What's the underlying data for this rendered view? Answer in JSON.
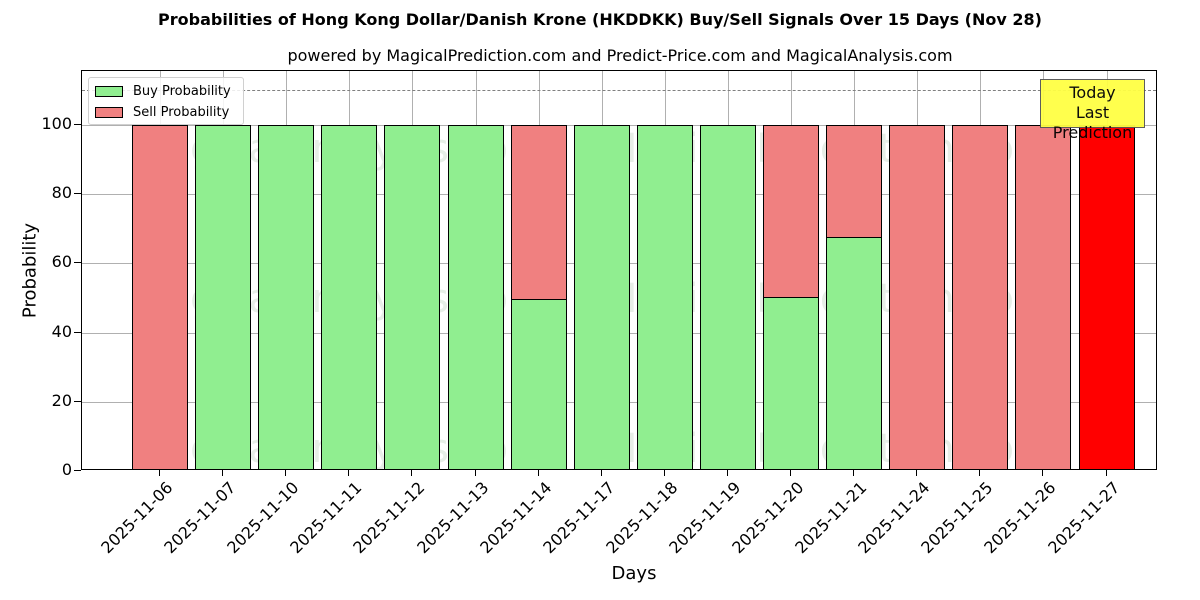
{
  "header": {
    "title": "Probabilities of Hong Kong Dollar/Danish Krone (HKDDKK) Buy/Sell Signals Over 15 Days (Nov 28)",
    "subtitle": "powered by MagicalPrediction.com and Predict-Price.com and MagicalAnalysis.com"
  },
  "legend": {
    "buy_label": "Buy Probability",
    "sell_label": "Sell Probability"
  },
  "annotation": {
    "line1": "Today",
    "line2": "Last Prediction"
  },
  "watermarks": [
    "MagicalAnalysis.com",
    "MagicalPrediction.com"
  ],
  "colors": {
    "buy": "#90ee90",
    "sell": "#f08080",
    "today_sell": "#ff0000",
    "annotation_bg": "#ffff44",
    "dashed_line": "#808080",
    "grid": "#b0b0b0"
  },
  "chart_data": {
    "type": "bar",
    "stacked": true,
    "title": "Probabilities of Hong Kong Dollar/Danish Krone (HKDDKK) Buy/Sell Signals Over 15 Days (Nov 28)",
    "subtitle": "powered by MagicalPrediction.com and Predict-Price.com and MagicalAnalysis.com",
    "xlabel": "Days",
    "ylabel": "Probability",
    "ylim": [
      0,
      115
    ],
    "yticks": [
      0,
      20,
      40,
      60,
      80,
      100
    ],
    "grid": true,
    "legend_position": "upper left",
    "reference_line": {
      "y": 110,
      "style": "dashed",
      "color": "#808080"
    },
    "categories": [
      "2025-11-06",
      "2025-11-07",
      "2025-11-10",
      "2025-11-11",
      "2025-11-12",
      "2025-11-13",
      "2025-11-14",
      "2025-11-17",
      "2025-11-18",
      "2025-11-19",
      "2025-11-20",
      "2025-11-21",
      "2025-11-24",
      "2025-11-25",
      "2025-11-26",
      "2025-11-27"
    ],
    "series": [
      {
        "name": "Buy Probability",
        "color": "#90ee90",
        "values": [
          0,
          100,
          100,
          100,
          100,
          100,
          49.7,
          100,
          100,
          100,
          50.3,
          67.6,
          0,
          0,
          0,
          0
        ]
      },
      {
        "name": "Sell Probability",
        "color": "#f08080",
        "values": [
          100,
          0,
          0,
          0,
          0,
          0,
          50.3,
          0,
          0,
          0,
          49.7,
          32.4,
          100,
          100,
          100,
          100
        ]
      }
    ],
    "highlight": {
      "category": "2025-11-27",
      "sell_color": "#ff0000",
      "annotation": "Today\nLast Prediction"
    }
  }
}
